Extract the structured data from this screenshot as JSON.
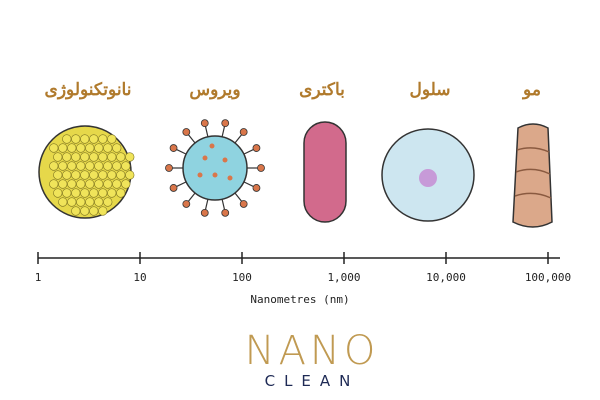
{
  "items": [
    {
      "label": "نانوتکنولوژی"
    },
    {
      "label": "ویروس"
    },
    {
      "label": "باکتری"
    },
    {
      "label": "سلول"
    },
    {
      "label": "مو"
    }
  ],
  "scale": {
    "ticks": [
      "1",
      "10",
      "100",
      "1,000",
      "10,000",
      "100,000"
    ],
    "title": "Nanometres (nm)"
  },
  "logo": {
    "name": "NANO",
    "subtitle": "CLEAN"
  }
}
